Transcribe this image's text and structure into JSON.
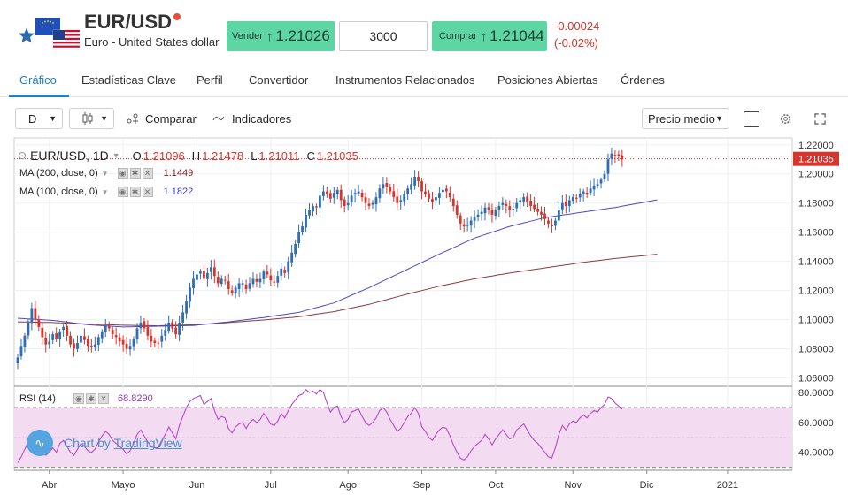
{
  "header": {
    "symbol": "EUR/USD",
    "description": "Euro - United States dollar",
    "sell_label": "Vender",
    "sell_price": "1.21026",
    "quantity": "3000",
    "buy_label": "Comprar",
    "buy_price": "1.21044",
    "change_abs": "-0.00024",
    "change_pct": "(-0.02%)",
    "arrow_icon": "up-arrow-icon",
    "colors": {
      "button_green": "#5ed6a4",
      "negative": "#d9342b",
      "accent": "#1f7fbf"
    }
  },
  "tabs": [
    {
      "label": "Gráfico",
      "active": true
    },
    {
      "label": "Estadísticas Clave"
    },
    {
      "label": "Perfil"
    },
    {
      "label": "Convertidor"
    },
    {
      "label": "Instrumentos Relacionados"
    },
    {
      "label": "Posiciones Abiertas"
    },
    {
      "label": "Órdenes"
    }
  ],
  "toolbar": {
    "interval": "D",
    "compare_label": "Comparar",
    "indicators_label": "Indicadores",
    "price_type": "Precio medio"
  },
  "legend": {
    "title": "EUR/USD, 1D",
    "o_label": "O",
    "o_value": "1.21096",
    "h_label": "H",
    "h_value": "1.21478",
    "l_label": "L",
    "l_value": "1.21011",
    "c_label": "C",
    "c_value": "1.21035",
    "ma200_label": "MA (200, close, 0)",
    "ma200_value": "1.1449",
    "ma100_label": "MA (100, close, 0)",
    "ma100_value": "1.1822",
    "rsi_label": "RSI (14)",
    "rsi_value": "68.8290"
  },
  "watermark": {
    "prefix": "Chart by",
    "brand": "TradingView"
  },
  "chart_data": {
    "type": "candlestick",
    "price_axis_ticks": [
      "1.22000",
      "1.20000",
      "1.18000",
      "1.16000",
      "1.14000",
      "1.12000",
      "1.10000",
      "1.08000",
      "1.06000"
    ],
    "price_ylim": [
      1.0555,
      1.2235
    ],
    "last_price_label": "1.21035",
    "rsi_axis_ticks": [
      "80.0000",
      "60.0000",
      "40.0000"
    ],
    "rsi_ylim": [
      28,
      83
    ],
    "rsi_bands": [
      70,
      30
    ],
    "x_ticks": [
      {
        "label": "Abr",
        "t": 9
      },
      {
        "label": "Mayo",
        "t": 30
      },
      {
        "label": "Jun",
        "t": 51
      },
      {
        "label": "Jul",
        "t": 72
      },
      {
        "label": "Ago",
        "t": 94
      },
      {
        "label": "Sep",
        "t": 115
      },
      {
        "label": "Oct",
        "t": 136
      },
      {
        "label": "Nov",
        "t": 158
      },
      {
        "label": "Dic",
        "t": 179
      },
      {
        "label": "2021",
        "t": 202
      }
    ],
    "close_series": [
      1.074,
      1.082,
      1.089,
      1.098,
      1.108,
      1.1,
      1.095,
      1.088,
      1.083,
      1.085,
      1.09,
      1.087,
      1.092,
      1.095,
      1.089,
      1.083,
      1.08,
      1.084,
      1.089,
      1.086,
      1.082,
      1.081,
      1.083,
      1.088,
      1.092,
      1.096,
      1.094,
      1.09,
      1.088,
      1.085,
      1.083,
      1.08,
      1.082,
      1.087,
      1.094,
      1.098,
      1.094,
      1.089,
      1.085,
      1.084,
      1.084,
      1.089,
      1.093,
      1.098,
      1.094,
      1.09,
      1.098,
      1.105,
      1.113,
      1.122,
      1.128,
      1.131,
      1.133,
      1.128,
      1.132,
      1.136,
      1.13,
      1.125,
      1.128,
      1.127,
      1.121,
      1.118,
      1.122,
      1.125,
      1.125,
      1.121,
      1.125,
      1.128,
      1.126,
      1.128,
      1.133,
      1.131,
      1.127,
      1.126,
      1.13,
      1.135,
      1.132,
      1.14,
      1.146,
      1.152,
      1.16,
      1.164,
      1.172,
      1.175,
      1.178,
      1.177,
      1.185,
      1.188,
      1.186,
      1.183,
      1.187,
      1.189,
      1.182,
      1.178,
      1.18,
      1.185,
      1.187,
      1.188,
      1.184,
      1.18,
      1.178,
      1.18,
      1.184,
      1.19,
      1.193,
      1.191,
      1.188,
      1.184,
      1.18,
      1.182,
      1.186,
      1.19,
      1.193,
      1.198,
      1.195,
      1.188,
      1.186,
      1.183,
      1.181,
      1.184,
      1.187,
      1.189,
      1.188,
      1.184,
      1.178,
      1.172,
      1.166,
      1.164,
      1.165,
      1.168,
      1.17,
      1.172,
      1.174,
      1.177,
      1.175,
      1.172,
      1.175,
      1.178,
      1.18,
      1.178,
      1.175,
      1.176,
      1.18,
      1.182,
      1.184,
      1.181,
      1.178,
      1.176,
      1.174,
      1.172,
      1.169,
      1.166,
      1.164,
      1.168,
      1.175,
      1.18,
      1.178,
      1.182,
      1.184,
      1.183,
      1.186,
      1.188,
      1.187,
      1.19,
      1.192,
      1.193,
      1.196,
      1.2,
      1.21,
      1.214,
      1.213,
      1.212,
      1.21
    ],
    "ma100_series": {
      "t": [
        0,
        10,
        20,
        30,
        40,
        50,
        60,
        70,
        80,
        90,
        100,
        110,
        120,
        130,
        140,
        150,
        160,
        170,
        182
      ],
      "values": [
        1.101,
        1.0995,
        1.0965,
        1.095,
        1.0955,
        1.096,
        1.0985,
        1.1015,
        1.105,
        1.1115,
        1.122,
        1.1335,
        1.145,
        1.156,
        1.164,
        1.17,
        1.1735,
        1.177,
        1.1822
      ]
    },
    "ma200_series": {
      "t": [
        0,
        10,
        20,
        30,
        40,
        50,
        60,
        70,
        80,
        90,
        100,
        110,
        120,
        130,
        140,
        150,
        160,
        170,
        182
      ],
      "values": [
        1.0985,
        1.098,
        1.097,
        1.0962,
        1.0958,
        1.0965,
        1.098,
        1.0998,
        1.102,
        1.1055,
        1.1105,
        1.117,
        1.123,
        1.128,
        1.132,
        1.1355,
        1.139,
        1.142,
        1.1449
      ]
    },
    "rsi_series": [
      33,
      37,
      42,
      47,
      52,
      46,
      44,
      41,
      38,
      40,
      43,
      40,
      46,
      48,
      44,
      40,
      38,
      42,
      46,
      44,
      41,
      40,
      42,
      47,
      51,
      54,
      52,
      48,
      46,
      44,
      42,
      39,
      41,
      46,
      52,
      55,
      51,
      47,
      44,
      43,
      43,
      48,
      52,
      57,
      53,
      49,
      58,
      64,
      70,
      74,
      76,
      77,
      78,
      72,
      74,
      76,
      68,
      62,
      64,
      63,
      56,
      53,
      57,
      59,
      60,
      56,
      60,
      62,
      60,
      62,
      66,
      63,
      59,
      58,
      61,
      66,
      63,
      68,
      72,
      75,
      78,
      79,
      82,
      80,
      81,
      79,
      82,
      80,
      73,
      67,
      70,
      71,
      64,
      60,
      62,
      67,
      68,
      69,
      64,
      60,
      58,
      60,
      63,
      68,
      70,
      67,
      62,
      58,
      54,
      56,
      60,
      64,
      66,
      70,
      66,
      57,
      54,
      50,
      48,
      52,
      55,
      57,
      56,
      51,
      45,
      40,
      36,
      35,
      37,
      41,
      44,
      46,
      48,
      52,
      49,
      45,
      49,
      52,
      55,
      52,
      49,
      50,
      55,
      57,
      59,
      55,
      51,
      48,
      46,
      43,
      40,
      37,
      36,
      43,
      52,
      58,
      55,
      59,
      61,
      60,
      63,
      65,
      63,
      66,
      68,
      67,
      70,
      72,
      77,
      76,
      73,
      71,
      69
    ]
  }
}
